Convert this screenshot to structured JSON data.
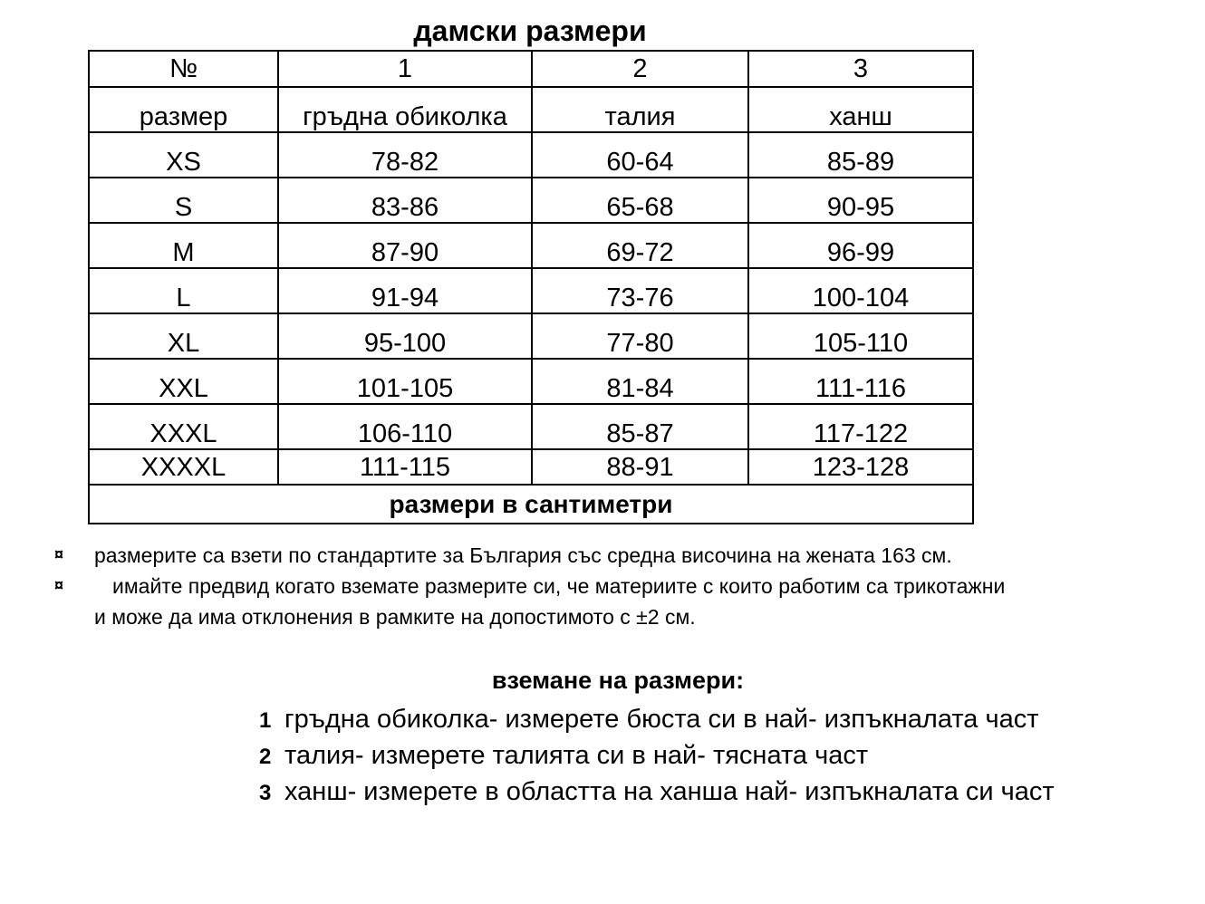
{
  "title": "дамски размери",
  "table": {
    "header_numbers": [
      "№",
      "1",
      "2",
      "3"
    ],
    "header_labels": [
      "размер",
      "гръдна обиколка",
      "талия",
      "ханш"
    ],
    "rows": [
      [
        "XS",
        "78-82",
        "60-64",
        "85-89"
      ],
      [
        "S",
        "83-86",
        "65-68",
        "90-95"
      ],
      [
        "M",
        "87-90",
        "69-72",
        "96-99"
      ],
      [
        "L",
        "91-94",
        "73-76",
        "100-104"
      ],
      [
        "XL",
        "95-100",
        "77-80",
        "105-110"
      ],
      [
        "XXL",
        "101-105",
        "81-84",
        "111-116"
      ],
      [
        "XXXL",
        "106-110",
        "85-87",
        "117-122"
      ],
      [
        "XXXXL",
        "111-115",
        "88-91",
        "123-128"
      ]
    ],
    "footer": "размери в сантиметри"
  },
  "notes": {
    "bullet_symbol": "¤",
    "items": [
      "размерите са взети по стандартите за България със средна височина на жената 163 см.",
      "имайте предвид когато вземате размерите си, че материите с които работим са трикотажни",
      "и може да има отклонения в рамките на допостимото с ±2 см."
    ]
  },
  "measuring": {
    "heading": "вземане на размери:",
    "steps": [
      {
        "num": "1",
        "text": "гръдна обиколка- измерете бюста си в най- изпъкналата част"
      },
      {
        "num": "2",
        "text": "талия- измерете талията си в най- тясната част"
      },
      {
        "num": "3",
        "text": "ханш- измерете в областта на ханша най- изпъкналата си част"
      }
    ]
  }
}
